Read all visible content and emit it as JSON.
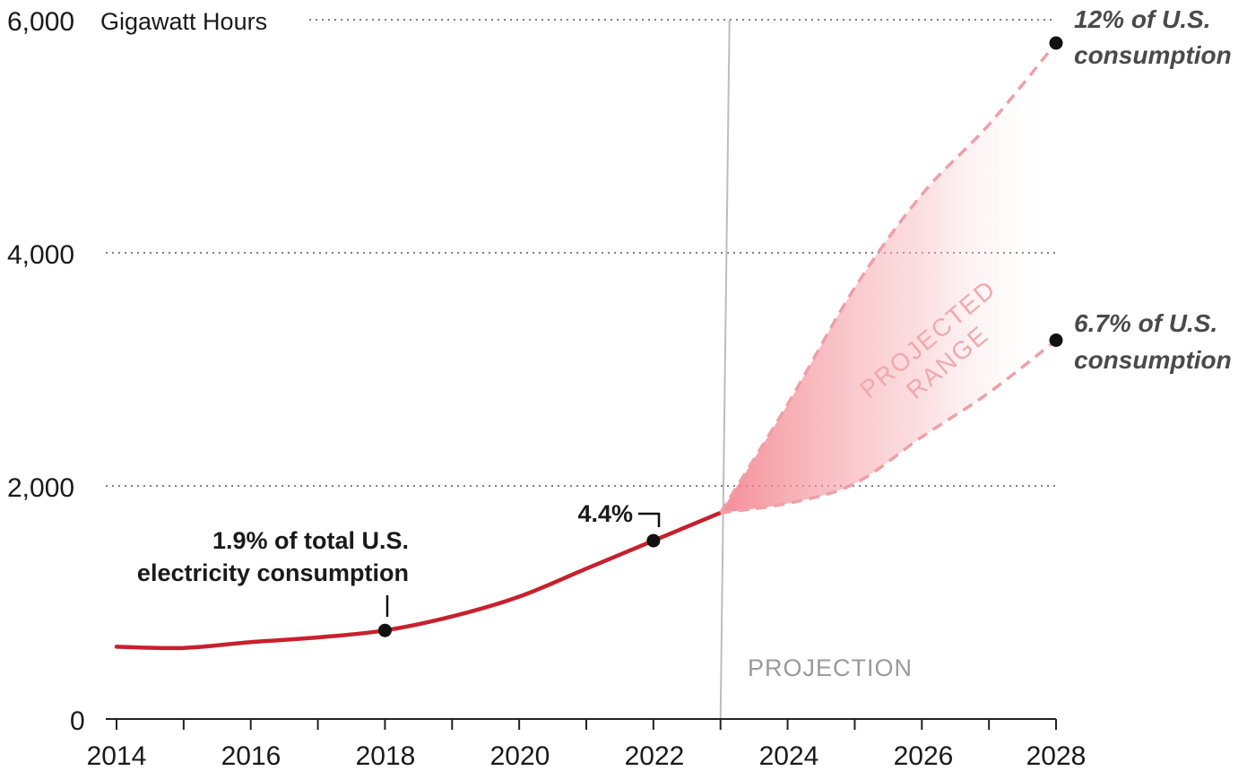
{
  "chart_data": {
    "type": "line",
    "unit_label": "Gigawatt Hours",
    "y_ticks": [
      "0",
      "2,000",
      "4,000",
      "6,000"
    ],
    "ylim": [
      0,
      6000
    ],
    "x_ticks": [
      "2014",
      "2016",
      "2018",
      "2020",
      "2022",
      "2024",
      "2026",
      "2028"
    ],
    "xlim": [
      2014,
      2028
    ],
    "grid": "dotted horizontal at 2,000 / 4,000 / 6,000",
    "projection_start": 2023,
    "projection_label": "PROJECTION",
    "range_label": [
      "PROJECTED",
      "RANGE"
    ],
    "colors": {
      "actual": "#c8202e",
      "projection": "#eea0a6",
      "range_fill": "#f28a93",
      "divider": "#bdbdbd",
      "point": "#111111"
    },
    "series": [
      {
        "values": [
          {
            "x": 2014,
            "y": 620
          },
          {
            "x": 2015,
            "y": 610
          },
          {
            "x": 2016,
            "y": 660
          },
          {
            "x": 2017,
            "y": 700
          },
          {
            "x": 2018,
            "y": 760
          },
          {
            "x": 2019,
            "y": 880
          },
          {
            "x": 2020,
            "y": 1050
          },
          {
            "x": 2021,
            "y": 1290
          },
          {
            "x": 2022,
            "y": 1530
          },
          {
            "x": 2023,
            "y": 1770
          }
        ]
      },
      {
        "values": [
          {
            "x": 2023,
            "y": 1770
          },
          {
            "x": 2024,
            "y": 2700
          },
          {
            "x": 2025,
            "y": 3700
          },
          {
            "x": 2026,
            "y": 4500
          },
          {
            "x": 2027,
            "y": 5100
          },
          {
            "x": 2028,
            "y": 5800
          }
        ]
      },
      {
        "values": [
          {
            "x": 2023,
            "y": 1770
          },
          {
            "x": 2024,
            "y": 1850
          },
          {
            "x": 2025,
            "y": 2020
          },
          {
            "x": 2026,
            "y": 2420
          },
          {
            "x": 2027,
            "y": 2800
          },
          {
            "x": 2028,
            "y": 3250
          }
        ]
      }
    ],
    "highlighted_points": [
      {
        "x": 2018,
        "y": 760,
        "label": [
          "1.9% of total U.S.",
          "electricity consumption"
        ]
      },
      {
        "x": 2022,
        "y": 1530,
        "label": [
          "4.4%"
        ]
      },
      {
        "x": 2028,
        "y": 5800,
        "label": [
          "12% of U.S.",
          "consumption"
        ]
      },
      {
        "x": 2028,
        "y": 3250,
        "label": [
          "6.7% of U.S.",
          "consumption"
        ]
      }
    ]
  }
}
